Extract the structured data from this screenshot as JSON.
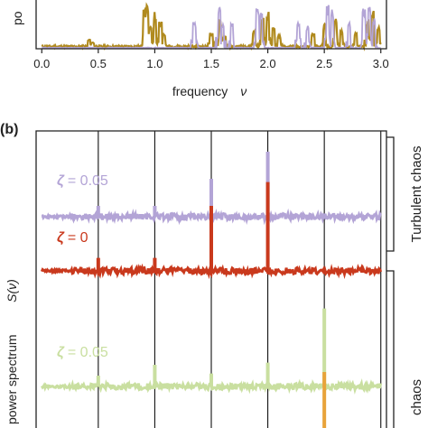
{
  "chart_data": [
    {
      "panel": "a",
      "type": "line",
      "ylabel_partial": "po",
      "xlabel": "frequency",
      "xlabel_symbol": "ν",
      "xlim": [
        -0.05,
        3.05
      ],
      "xticks": [
        "0.0",
        "0.5",
        "1.0",
        "1.5",
        "2.0",
        "2.5",
        "3.0"
      ],
      "xtick_values": [
        0.0,
        0.5,
        1.0,
        1.5,
        2.0,
        2.5,
        3.0
      ],
      "ylim": [
        0,
        1
      ],
      "colors": {
        "gold": "#b08a1e",
        "lavender": "#b3a4d6"
      },
      "series": [
        {
          "color": "gold",
          "baseline": 0.05,
          "peaks": [
            {
              "x": 0.42,
              "y": 0.22
            },
            {
              "x": 0.45,
              "y": 0.15
            },
            {
              "x": 0.91,
              "y": 0.92
            },
            {
              "x": 0.93,
              "y": 1.0
            },
            {
              "x": 0.96,
              "y": 0.55
            },
            {
              "x": 1.0,
              "y": 0.82
            },
            {
              "x": 1.05,
              "y": 0.6
            },
            {
              "x": 1.08,
              "y": 0.38
            },
            {
              "x": 1.5,
              "y": 0.38
            },
            {
              "x": 1.58,
              "y": 0.65
            },
            {
              "x": 1.62,
              "y": 0.28
            },
            {
              "x": 1.88,
              "y": 0.42
            },
            {
              "x": 1.95,
              "y": 0.72
            },
            {
              "x": 2.0,
              "y": 0.85
            },
            {
              "x": 2.05,
              "y": 0.5
            },
            {
              "x": 2.1,
              "y": 0.3
            },
            {
              "x": 2.4,
              "y": 0.35
            },
            {
              "x": 2.5,
              "y": 0.55
            },
            {
              "x": 2.6,
              "y": 0.75
            },
            {
              "x": 2.65,
              "y": 0.45
            },
            {
              "x": 2.78,
              "y": 0.35
            },
            {
              "x": 2.88,
              "y": 0.62
            },
            {
              "x": 2.93,
              "y": 0.85
            },
            {
              "x": 2.98,
              "y": 0.5
            }
          ]
        },
        {
          "color": "lavender",
          "baseline": 0.02,
          "peaks": [
            {
              "x": 1.35,
              "y": 0.62
            },
            {
              "x": 1.57,
              "y": 0.95
            },
            {
              "x": 1.6,
              "y": 0.55
            },
            {
              "x": 1.68,
              "y": 0.58
            },
            {
              "x": 1.91,
              "y": 0.9
            },
            {
              "x": 1.94,
              "y": 0.8
            },
            {
              "x": 2.27,
              "y": 0.68
            },
            {
              "x": 2.35,
              "y": 0.52
            },
            {
              "x": 2.53,
              "y": 0.98
            },
            {
              "x": 2.57,
              "y": 0.9
            },
            {
              "x": 2.72,
              "y": 0.6
            },
            {
              "x": 2.85,
              "y": 0.9
            },
            {
              "x": 2.9,
              "y": 0.98
            },
            {
              "x": 2.94,
              "y": 0.72
            }
          ]
        }
      ]
    },
    {
      "panel": "b",
      "panel_label": "(b)",
      "type": "line",
      "ylabel": "power spectrum",
      "ylabel_symbol": "S(ν)",
      "xlim": [
        -0.05,
        3.05
      ],
      "gridlines_x": [
        0.5,
        1.0,
        1.5,
        2.0,
        2.5,
        3.0
      ],
      "side_labels": [
        "Turbulent chaos",
        "chaos"
      ],
      "colors": {
        "lavender": "#b3a4d6",
        "red": "#c9391d",
        "lime": "#c9dfa0",
        "orange": "#e8a33a"
      },
      "series": [
        {
          "color": "lavender",
          "label_symbol": "ζ",
          "label_value": "= 0.05",
          "baseline": 0.05,
          "spikes": [
            {
              "x": 0.5,
              "h": 0.1
            },
            {
              "x": 1.0,
              "h": 0.1
            },
            {
              "x": 1.5,
              "h": 0.35
            },
            {
              "x": 2.0,
              "h": 0.6
            }
          ]
        },
        {
          "color": "red",
          "label_symbol": "ζ",
          "label_value": "= 0",
          "baseline": 0.0,
          "spikes": [
            {
              "x": 0.5,
              "h": 0.12
            },
            {
              "x": 1.0,
              "h": 0.12
            },
            {
              "x": 1.5,
              "h": 0.6
            },
            {
              "x": 2.0,
              "h": 0.82
            }
          ]
        },
        {
          "color": "lime",
          "label_symbol": "ζ",
          "label_value": "= 0.05",
          "baseline": -0.05,
          "spikes": [
            {
              "x": 0.5,
              "h": 0.1
            },
            {
              "x": 1.0,
              "h": 0.2
            },
            {
              "x": 1.5,
              "h": 0.12
            },
            {
              "x": 2.0,
              "h": 0.22
            },
            {
              "x": 2.5,
              "h": 0.72
            }
          ]
        },
        {
          "color": "orange",
          "label_symbol": "",
          "label_value": "",
          "baseline": 0.0,
          "spikes": [
            {
              "x": 2.5,
              "h": 0.6
            }
          ]
        }
      ]
    }
  ]
}
